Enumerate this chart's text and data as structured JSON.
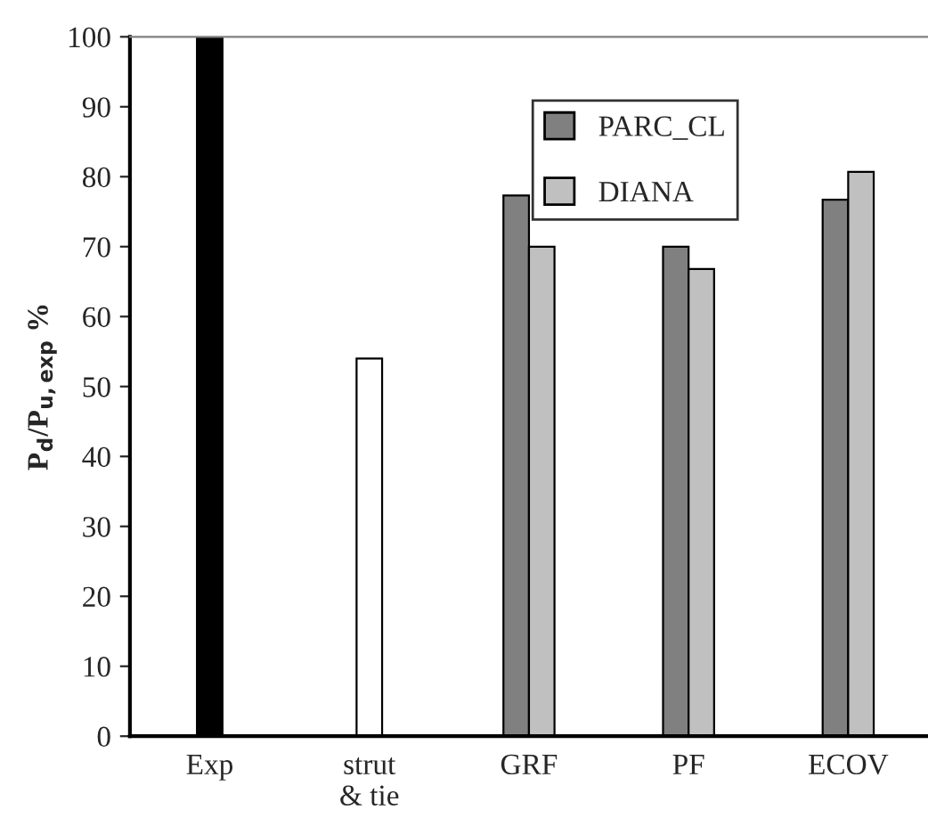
{
  "chart_data": {
    "type": "bar",
    "ylabel": "P$_{d}$/P$_{u,exp}$ %",
    "categories": [
      "Exp",
      "strut\n& tie",
      "GRF",
      "PF",
      "ECOV"
    ],
    "series": [
      {
        "color": "#000000",
        "values": [
          100,
          null,
          null,
          null,
          null
        ]
      },
      {
        "color": "#ffffff",
        "values": [
          null,
          54,
          null,
          null,
          null
        ]
      },
      {
        "name": "PARC_CL",
        "color": "#808080",
        "values": [
          null,
          null,
          77.3,
          70,
          76.7
        ]
      },
      {
        "name": "DIANA",
        "color": "#c0c0c0",
        "values": [
          null,
          null,
          70,
          66.8,
          80.7
        ]
      }
    ],
    "ylim": [
      0,
      100
    ],
    "yticks": [
      0,
      10,
      20,
      30,
      40,
      50,
      60,
      70,
      80,
      90,
      100
    ],
    "grid": false,
    "legend": "top right"
  }
}
